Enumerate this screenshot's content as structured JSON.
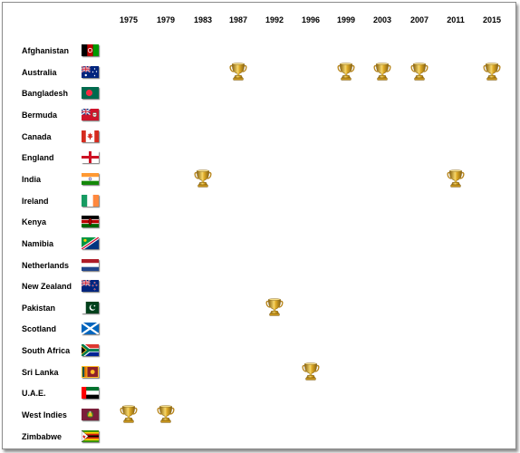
{
  "years": [
    "1975",
    "1979",
    "1983",
    "1987",
    "1992",
    "1996",
    "1999",
    "2003",
    "2007",
    "2011",
    "2015"
  ],
  "countries": [
    {
      "name": "Afghanistan",
      "flag": "afghanistan-flag-icon",
      "wins": []
    },
    {
      "name": "Australia",
      "flag": "australia-flag-icon",
      "wins": [
        "1987",
        "1999",
        "2003",
        "2007",
        "2015"
      ]
    },
    {
      "name": "Bangladesh",
      "flag": "bangladesh-flag-icon",
      "wins": []
    },
    {
      "name": "Bermuda",
      "flag": "bermuda-flag-icon",
      "wins": []
    },
    {
      "name": "Canada",
      "flag": "canada-flag-icon",
      "wins": []
    },
    {
      "name": "England",
      "flag": "england-flag-icon",
      "wins": []
    },
    {
      "name": "India",
      "flag": "india-flag-icon",
      "wins": [
        "1983",
        "2011"
      ]
    },
    {
      "name": "Ireland",
      "flag": "ireland-flag-icon",
      "wins": []
    },
    {
      "name": "Kenya",
      "flag": "kenya-flag-icon",
      "wins": []
    },
    {
      "name": "Namibia",
      "flag": "namibia-flag-icon",
      "wins": []
    },
    {
      "name": "Netherlands",
      "flag": "netherlands-flag-icon",
      "wins": []
    },
    {
      "name": "New Zealand",
      "flag": "new-zealand-flag-icon",
      "wins": []
    },
    {
      "name": "Pakistan",
      "flag": "pakistan-flag-icon",
      "wins": [
        "1992"
      ]
    },
    {
      "name": "Scotland",
      "flag": "scotland-flag-icon",
      "wins": []
    },
    {
      "name": "South Africa",
      "flag": "south-africa-flag-icon",
      "wins": []
    },
    {
      "name": "Sri Lanka",
      "flag": "sri-lanka-flag-icon",
      "wins": [
        "1996"
      ]
    },
    {
      "name": "U.A.E.",
      "flag": "uae-flag-icon",
      "wins": []
    },
    {
      "name": "West Indies",
      "flag": "west-indies-flag-icon",
      "wins": [
        "1975",
        "1979"
      ]
    },
    {
      "name": "Zimbabwe",
      "flag": "zimbabwe-flag-icon",
      "wins": []
    }
  ],
  "trophy_icon": "trophy-icon",
  "colors": {
    "trophy_gold": "#d9a521",
    "trophy_dark": "#8a6410",
    "frame_border": "#8c8c8c"
  }
}
